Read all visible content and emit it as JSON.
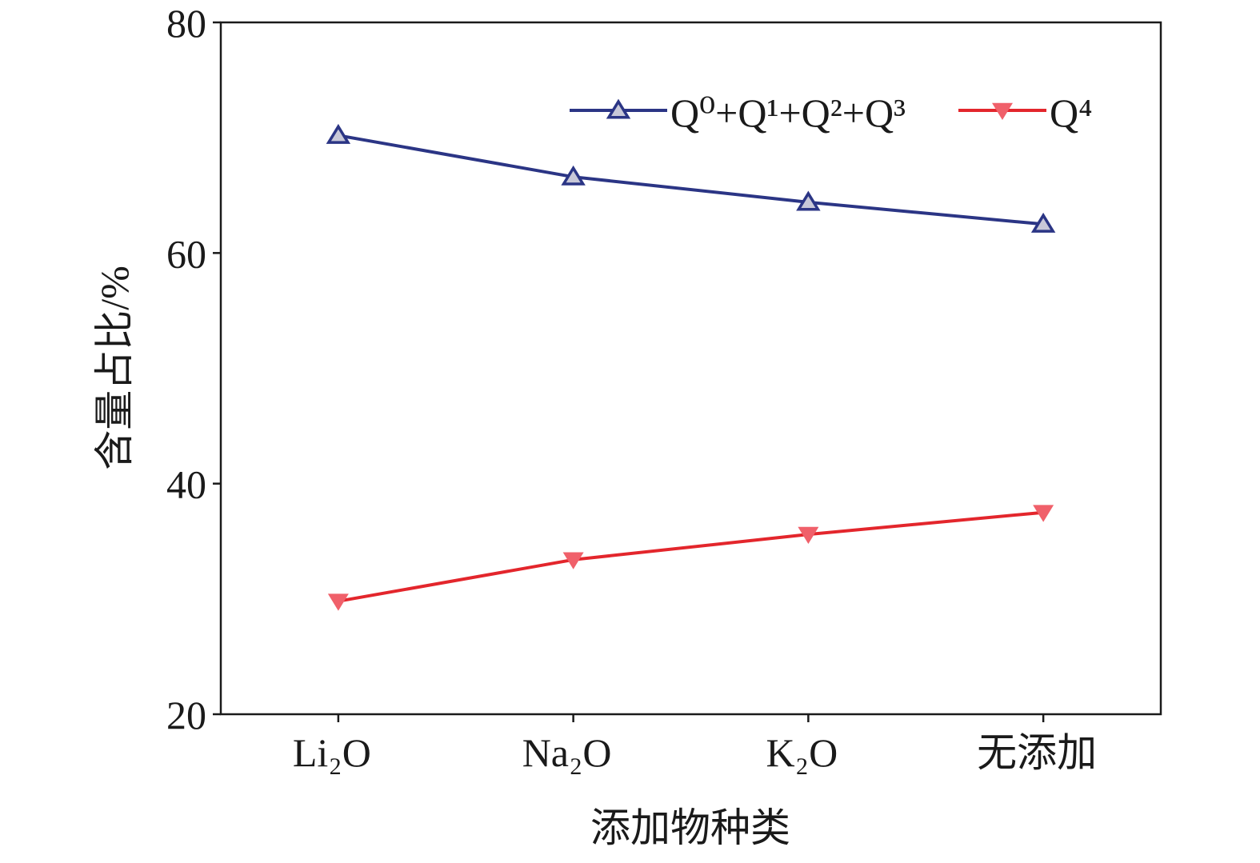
{
  "chart_data": {
    "type": "line",
    "categories": [
      "Li₂O",
      "Na₂O",
      "K₂O",
      "无添加"
    ],
    "xlabel": "添加物种类",
    "ylabel": "含量占比/%",
    "ylim": [
      20,
      80
    ],
    "yticks": [
      20,
      40,
      60,
      80
    ],
    "grid": false,
    "legend_position": "top-right",
    "series": [
      {
        "name": "Q⁰+Q¹+Q²+Q³",
        "values": [
          70.2,
          66.6,
          64.4,
          62.5
        ],
        "color": "#2b3585",
        "marker": "triangle-up-open"
      },
      {
        "name": "Q⁴",
        "values": [
          29.8,
          33.4,
          35.6,
          37.5
        ],
        "color": "#e3262c",
        "marker": "triangle-down-filled"
      }
    ]
  }
}
